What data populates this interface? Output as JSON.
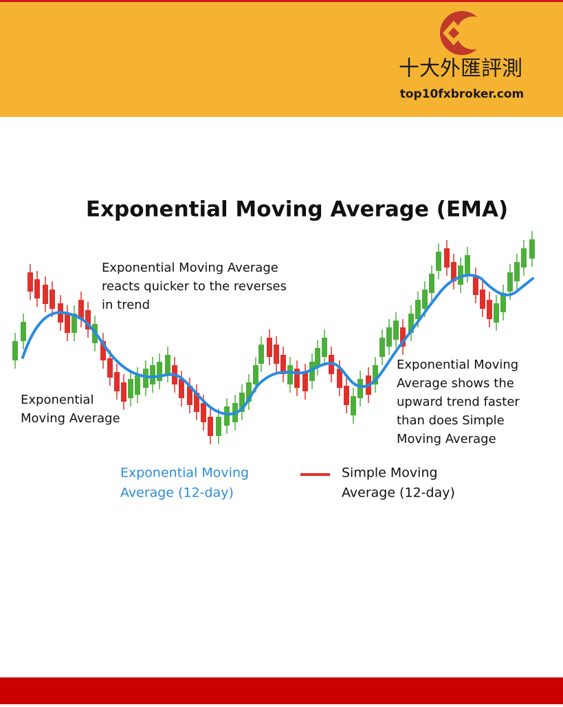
{
  "header": {
    "brand": "十大外匯評測",
    "site": "top10fxbroker.com"
  },
  "title": "Exponential Moving Average (EMA)",
  "annotations": {
    "top": [
      "Exponential Moving Average",
      "reacts quicker to the reverses",
      "in trend"
    ],
    "left": [
      "Exponential",
      "Moving Average"
    ],
    "right": [
      "Exponential Moving",
      "Average shows the",
      "upward trend faster",
      "than does Simple",
      "Moving Average"
    ]
  },
  "legend": {
    "ema": [
      "Exponential Moving",
      "Average (12-day)"
    ],
    "sma": [
      "Simple Moving",
      "Average (12-day)"
    ]
  }
}
